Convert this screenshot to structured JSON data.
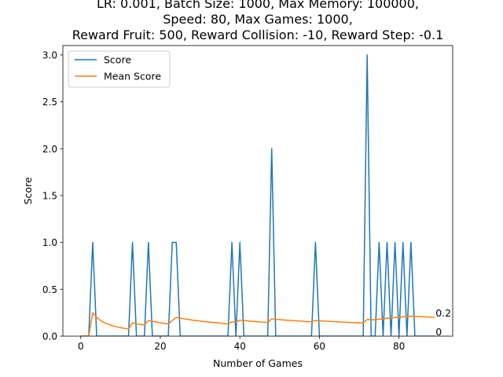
{
  "chart_data": {
    "type": "line",
    "title_lines": [
      "LR: 0.001, Batch Size: 1000, Max Memory: 100000,",
      "Speed: 80, Max Games: 1000,",
      "Reward Fruit: 500, Reward Collision: -10, Reward Step: -0.1"
    ],
    "xlabel": "Number of Games",
    "ylabel": "Score",
    "xlim": [
      -4.5,
      93.5
    ],
    "ylim": [
      0,
      3.1
    ],
    "xticks": [
      0,
      20,
      40,
      60,
      80
    ],
    "yticks": [
      0.0,
      0.5,
      1.0,
      1.5,
      2.0,
      2.5,
      3.0
    ],
    "grid": false,
    "legend_position": "upper-left",
    "series": [
      {
        "name": "Score",
        "color": "#1f77b4",
        "x": [
          0,
          1,
          2,
          3,
          4,
          5,
          6,
          7,
          8,
          9,
          10,
          11,
          12,
          13,
          14,
          15,
          16,
          17,
          18,
          19,
          20,
          21,
          22,
          23,
          24,
          25,
          26,
          27,
          28,
          29,
          30,
          31,
          32,
          33,
          34,
          35,
          36,
          37,
          38,
          39,
          40,
          41,
          42,
          43,
          44,
          45,
          46,
          47,
          48,
          49,
          50,
          51,
          52,
          53,
          54,
          55,
          56,
          57,
          58,
          59,
          60,
          61,
          62,
          63,
          64,
          65,
          66,
          67,
          68,
          69,
          70,
          71,
          72,
          73,
          74,
          75,
          76,
          77,
          78,
          79,
          80,
          81,
          82,
          83,
          84,
          85,
          86,
          87,
          88,
          89
        ],
        "values": [
          0,
          0,
          0,
          1,
          0,
          0,
          0,
          0,
          0,
          0,
          0,
          0,
          0,
          1,
          0,
          0,
          0,
          1,
          0,
          0,
          0,
          0,
          0,
          1,
          1,
          0,
          0,
          0,
          0,
          0,
          0,
          0,
          0,
          0,
          0,
          0,
          0,
          0,
          1,
          0,
          1,
          0,
          0,
          0,
          0,
          0,
          0,
          0,
          2,
          0,
          0,
          0,
          0,
          0,
          0,
          0,
          0,
          0,
          0,
          1,
          0,
          0,
          0,
          0,
          0,
          0,
          0,
          0,
          0,
          0,
          0,
          0,
          3,
          0,
          0,
          1,
          0,
          1,
          0,
          1,
          0,
          1,
          0,
          1,
          0,
          0,
          0,
          0,
          0,
          0
        ]
      },
      {
        "name": "Mean Score",
        "color": "#ff7f0e",
        "x": [
          0,
          1,
          2,
          3,
          4,
          5,
          6,
          7,
          8,
          9,
          10,
          11,
          12,
          13,
          14,
          15,
          16,
          17,
          18,
          19,
          20,
          21,
          22,
          23,
          24,
          25,
          26,
          27,
          28,
          29,
          30,
          31,
          32,
          33,
          34,
          35,
          36,
          37,
          38,
          39,
          40,
          41,
          42,
          43,
          44,
          45,
          46,
          47,
          48,
          49,
          50,
          51,
          52,
          53,
          54,
          55,
          56,
          57,
          58,
          59,
          60,
          61,
          62,
          63,
          64,
          65,
          66,
          67,
          68,
          69,
          70,
          71,
          72,
          73,
          74,
          75,
          76,
          77,
          78,
          79,
          80,
          81,
          82,
          83,
          84,
          85,
          86,
          87,
          88,
          89
        ],
        "values": [
          0,
          0,
          0,
          0.25,
          0.2,
          0.167,
          0.143,
          0.125,
          0.111,
          0.1,
          0.091,
          0.083,
          0.077,
          0.143,
          0.133,
          0.125,
          0.118,
          0.167,
          0.158,
          0.15,
          0.143,
          0.136,
          0.13,
          0.167,
          0.2,
          0.192,
          0.185,
          0.179,
          0.172,
          0.167,
          0.161,
          0.156,
          0.152,
          0.147,
          0.143,
          0.139,
          0.135,
          0.132,
          0.154,
          0.15,
          0.171,
          0.167,
          0.163,
          0.159,
          0.156,
          0.152,
          0.149,
          0.146,
          0.184,
          0.18,
          0.176,
          0.173,
          0.17,
          0.167,
          0.164,
          0.161,
          0.158,
          0.155,
          0.153,
          0.167,
          0.164,
          0.161,
          0.159,
          0.156,
          0.154,
          0.152,
          0.149,
          0.147,
          0.145,
          0.143,
          0.141,
          0.139,
          0.178,
          0.176,
          0.173,
          0.184,
          0.182,
          0.192,
          0.19,
          0.2,
          0.198,
          0.207,
          0.205,
          0.214,
          0.212,
          0.209,
          0.207,
          0.205,
          0.202,
          0.2
        ]
      }
    ],
    "end_annotations": [
      "0.2",
      "0"
    ]
  }
}
